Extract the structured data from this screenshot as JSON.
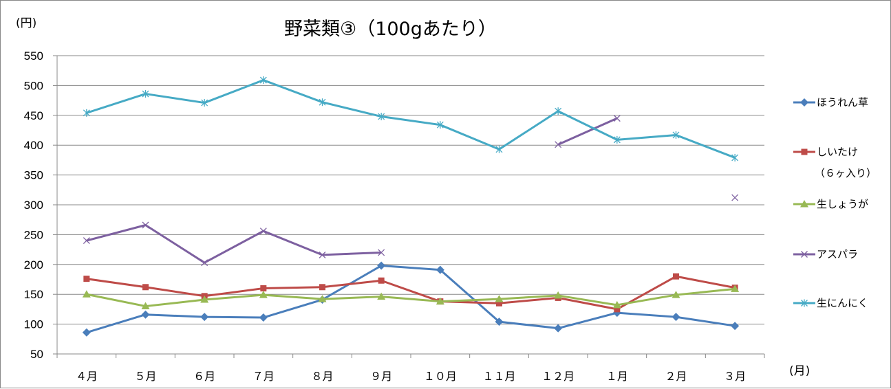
{
  "chart_data": {
    "type": "line",
    "title": "野菜類③（100gあたり）",
    "ylabel": "(円)",
    "xlabel": "(月)",
    "ylim": [
      50,
      550
    ],
    "yticks": [
      50,
      100,
      150,
      200,
      250,
      300,
      350,
      400,
      450,
      500,
      550
    ],
    "categories": [
      "４月",
      "５月",
      "６月",
      "７月",
      "８月",
      "９月",
      "１０月",
      "１１月",
      "１２月",
      "１月",
      "２月",
      "３月"
    ],
    "grid": true,
    "legend_position": "right",
    "series": [
      {
        "name": "ほうれん草",
        "color": "#4a7ebb",
        "marker": "diamond",
        "values": [
          86,
          116,
          112,
          111,
          141,
          198,
          191,
          104,
          93,
          119,
          112,
          97
        ]
      },
      {
        "name": "しいたけ",
        "name_line2": "（６ヶ入り）",
        "color": "#be4b48",
        "marker": "square",
        "values": [
          176,
          162,
          147,
          160,
          162,
          173,
          138,
          135,
          144,
          125,
          180,
          161
        ]
      },
      {
        "name": "生しょうが",
        "color": "#98b954",
        "marker": "triangle",
        "values": [
          150,
          130,
          141,
          149,
          142,
          146,
          138,
          142,
          148,
          132,
          149,
          159
        ]
      },
      {
        "name": "アスパラ",
        "color": "#7d60a0",
        "marker": "x",
        "values": [
          240,
          266,
          203,
          256,
          216,
          220,
          null,
          null,
          401,
          445,
          null,
          312
        ]
      },
      {
        "name": "生にんにく",
        "color": "#46aac5",
        "marker": "star",
        "values": [
          454,
          486,
          471,
          509,
          472,
          448,
          434,
          393,
          457,
          409,
          417,
          379
        ]
      }
    ]
  }
}
